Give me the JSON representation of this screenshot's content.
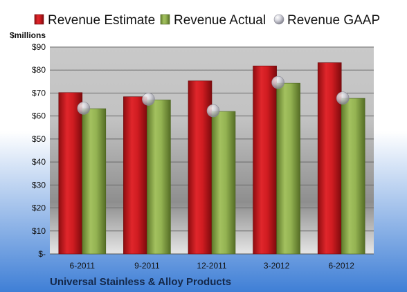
{
  "chart_data": {
    "type": "bar",
    "ylabel": "$millions",
    "ylim": [
      0,
      90
    ],
    "yticks": [
      0,
      10,
      20,
      30,
      40,
      50,
      60,
      70,
      80,
      90
    ],
    "ytick_labels": [
      "$-",
      "$10",
      "$20",
      "$30",
      "$40",
      "$50",
      "$60",
      "$70",
      "$80",
      "$90"
    ],
    "categories": [
      "6-2011",
      "9-2011",
      "12-2011",
      "3-2012",
      "6-2012"
    ],
    "series": [
      {
        "name": "Revenue Estimate",
        "kind": "bar",
        "color": "#c8171c",
        "values": [
          70.2,
          68.4,
          75.3,
          81.8,
          83.2
        ]
      },
      {
        "name": "Revenue Actual",
        "kind": "bar",
        "color": "#8caa4a",
        "values": [
          63.2,
          67.0,
          62.0,
          74.3,
          67.7
        ]
      },
      {
        "name": "Revenue GAAP",
        "kind": "marker",
        "color": "#c8c8d4",
        "values": [
          63.4,
          67.3,
          62.3,
          74.6,
          67.8
        ]
      }
    ],
    "legend_position": "top",
    "grid": true,
    "footer": "Universal Stainless & Alloy Products"
  }
}
